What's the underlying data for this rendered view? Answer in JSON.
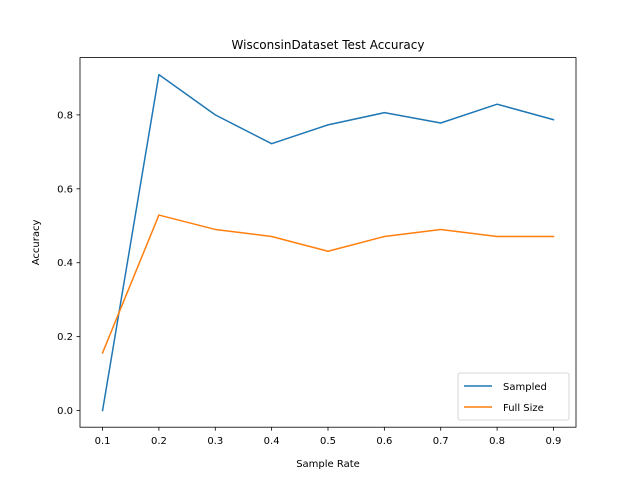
{
  "chart_data": {
    "type": "line",
    "title": "WisconsinDataset Test Accuracy",
    "xlabel": "Sample Rate",
    "ylabel": "Accuracy",
    "x": [
      0.1,
      0.2,
      0.3,
      0.4,
      0.5,
      0.6,
      0.7,
      0.8,
      0.9
    ],
    "x_ticks": [
      "0.1",
      "0.2",
      "0.3",
      "0.4",
      "0.5",
      "0.6",
      "0.7",
      "0.8",
      "0.9"
    ],
    "y_ticks": [
      "0.0",
      "0.2",
      "0.4",
      "0.6",
      "0.8"
    ],
    "xlim": [
      0.06,
      0.94
    ],
    "ylim": [
      -0.045,
      0.955
    ],
    "grid": false,
    "legend_position": "lower-right",
    "series": [
      {
        "name": "Sampled",
        "color": "#1f77b4",
        "values": [
          0.0,
          0.909,
          0.8,
          0.722,
          0.773,
          0.806,
          0.778,
          0.829,
          0.787
        ]
      },
      {
        "name": "Full Size",
        "color": "#ff7f0e",
        "values": [
          0.156,
          0.529,
          0.49,
          0.471,
          0.431,
          0.471,
          0.49,
          0.471,
          0.471
        ]
      }
    ]
  }
}
